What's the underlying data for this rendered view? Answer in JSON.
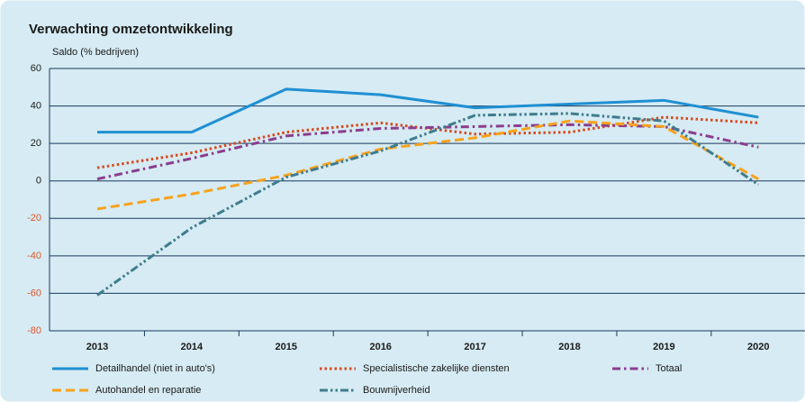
{
  "chart_data": {
    "type": "line",
    "title": "Verwachting omzetontwikkeling",
    "y_label": "Saldo (% bedrijven)",
    "categories": [
      "2013",
      "2014",
      "2015",
      "2016",
      "2017",
      "2018",
      "2019",
      "2020"
    ],
    "series": [
      {
        "name": "Detailhandel (niet in auto's)",
        "color": "#1f8fd2",
        "style": "solid",
        "values": [
          26,
          26,
          49,
          46,
          39,
          41,
          43,
          34
        ]
      },
      {
        "name": "Specialistische zakelijke diensten",
        "color": "#d9481c",
        "style": "dotted",
        "values": [
          7,
          15,
          26,
          31,
          25,
          26,
          34,
          31
        ]
      },
      {
        "name": "Totaal",
        "color": "#8b3d8e",
        "style": "dashdot",
        "values": [
          1,
          12,
          24,
          28,
          29,
          30,
          29,
          18
        ]
      },
      {
        "name": "Autohandel en reparatie",
        "color": "#f7a21b",
        "style": "dashed",
        "values": [
          -15,
          -7,
          3,
          17,
          23,
          32,
          29,
          1
        ]
      },
      {
        "name": "Bouwnijverheid",
        "color": "#3e7c8d",
        "style": "dashdotdot",
        "values": [
          -61,
          -25,
          2,
          16,
          35,
          36,
          32,
          -2
        ]
      }
    ],
    "ylim": [
      -80,
      60
    ],
    "yticks": [
      -80,
      -60,
      -40,
      -20,
      0,
      20,
      40,
      60
    ],
    "grid": true,
    "negative_tick_color": "#e0552a",
    "legend": "bottom"
  }
}
